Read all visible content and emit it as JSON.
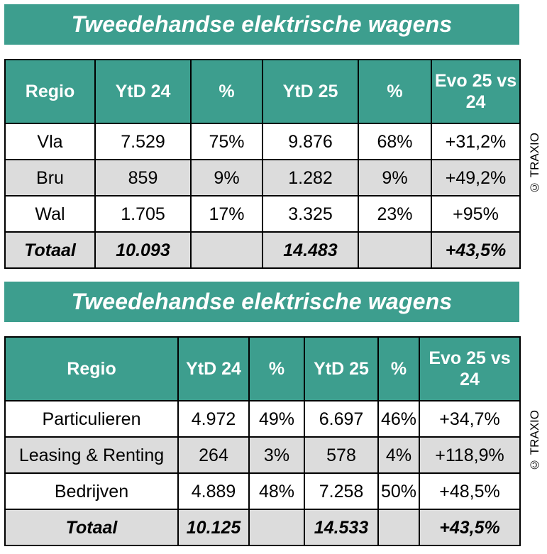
{
  "table1": {
    "title": "Tweedehandse elektrische wagens",
    "headers": [
      "Regio",
      "YtD 24",
      "%",
      "YtD 25",
      "%",
      "Evo 25 vs 24"
    ],
    "rows": [
      [
        "Vla",
        "7.529",
        "75%",
        "9.876",
        "68%",
        "+31,2%"
      ],
      [
        "Bru",
        "859",
        "9%",
        "1.282",
        "9%",
        "+49,2%"
      ],
      [
        "Wal",
        "1.705",
        "17%",
        "3.325",
        "23%",
        "+95%"
      ]
    ],
    "total": [
      "Totaal",
      "10.093",
      "",
      "14.483",
      "",
      "+43,5%"
    ],
    "copyright": "© TRAXIO"
  },
  "table2": {
    "title": "Tweedehandse elektrische wagens",
    "headers": [
      "Regio",
      "YtD 24",
      "%",
      "YtD 25",
      "%",
      "Evo 25 vs 24"
    ],
    "rows": [
      [
        "Particulieren",
        "4.972",
        "49%",
        "6.697",
        "46%",
        "+34,7%"
      ],
      [
        "Leasing & Renting",
        "264",
        "3%",
        "578",
        "4%",
        "+118,9%"
      ],
      [
        "Bedrijven",
        "4.889",
        "48%",
        "7.258",
        "50%",
        "+48,5%"
      ]
    ],
    "total": [
      "Totaal",
      "10.125",
      "",
      "14.533",
      "",
      "+43,5%"
    ],
    "copyright": "© TRAXIO"
  },
  "colors": {
    "header_teal": "#3d9e8e",
    "row_grey": "#dcdcdc"
  }
}
